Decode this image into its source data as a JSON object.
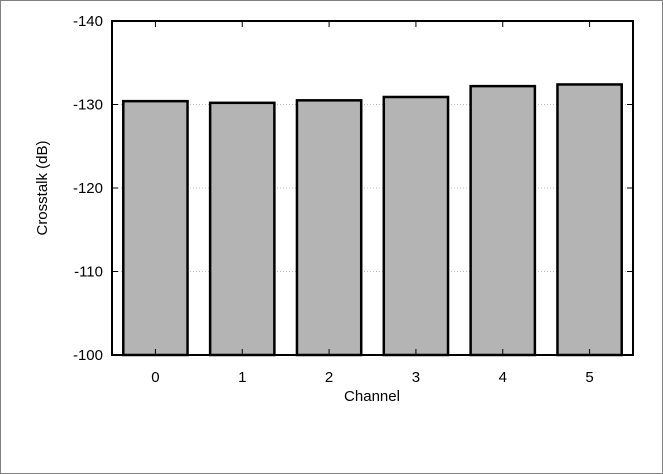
{
  "chart_data": {
    "type": "bar",
    "categories": [
      "0",
      "1",
      "2",
      "3",
      "4",
      "5"
    ],
    "values": [
      -130.4,
      -130.2,
      -130.5,
      -130.9,
      -132.2,
      -132.4
    ],
    "xlabel": "Channel",
    "ylabel": "Crosstalk (dB)",
    "ylim": [
      -100,
      -140
    ],
    "y_axis_inverted": true,
    "yticks": [
      -140,
      -130,
      -120,
      -110,
      -100
    ],
    "ytick_labels": [
      "-140",
      "-130",
      "-120",
      "-110",
      "-100"
    ],
    "grid": "horizontal dotted",
    "colors": {
      "bar_fill": "#b4b4b4",
      "bar_stroke": "#000000",
      "grid": "#bdbdbd"
    }
  }
}
